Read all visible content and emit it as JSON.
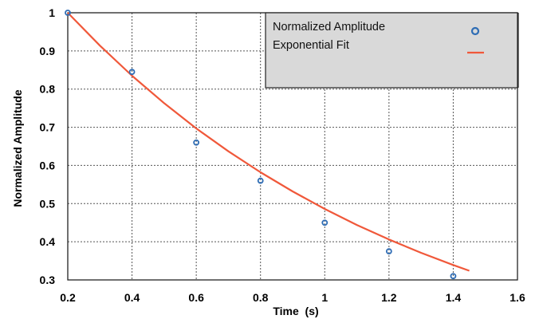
{
  "chart_data": {
    "type": "scatter",
    "title": "",
    "xlabel": "Time  (s)",
    "ylabel": "Normalized Amplitude",
    "xlim": [
      0.2,
      1.6
    ],
    "ylim": [
      0.3,
      1.0
    ],
    "xticks": [
      0.2,
      0.4,
      0.6,
      0.8,
      1.0,
      1.2,
      1.4,
      1.6
    ],
    "xtick_labels": [
      "0.2",
      "0.4",
      "0.6",
      "0.8",
      "1",
      "1.2",
      "1.4",
      "1.6"
    ],
    "yticks": [
      0.3,
      0.4,
      0.5,
      0.6,
      0.7,
      0.8,
      0.9,
      1.0
    ],
    "ytick_labels": [
      "0.3",
      "0.4",
      "0.5",
      "0.6",
      "0.7",
      "0.8",
      "0.9",
      "1"
    ],
    "grid": true,
    "legend_position": "top-right",
    "series": [
      {
        "name": "Normalized Amplitude",
        "kind": "markers",
        "marker": "circle",
        "color": "#2f6db5",
        "x": [
          0.2,
          0.4,
          0.6,
          0.8,
          1.0,
          1.2,
          1.4
        ],
        "y": [
          1.0,
          0.845,
          0.66,
          0.56,
          0.45,
          0.375,
          0.31
        ]
      },
      {
        "name": "Exponential Fit",
        "kind": "line",
        "color": "#f0583a",
        "x": [
          0.2,
          0.3,
          0.4,
          0.5,
          0.6,
          0.7,
          0.8,
          0.9,
          1.0,
          1.1,
          1.2,
          1.3,
          1.4,
          1.45
        ],
        "y": [
          1.0,
          0.914,
          0.835,
          0.763,
          0.697,
          0.637,
          0.582,
          0.532,
          0.486,
          0.444,
          0.406,
          0.371,
          0.339,
          0.324
        ]
      }
    ],
    "legend_bg": "#d9d9d9"
  }
}
